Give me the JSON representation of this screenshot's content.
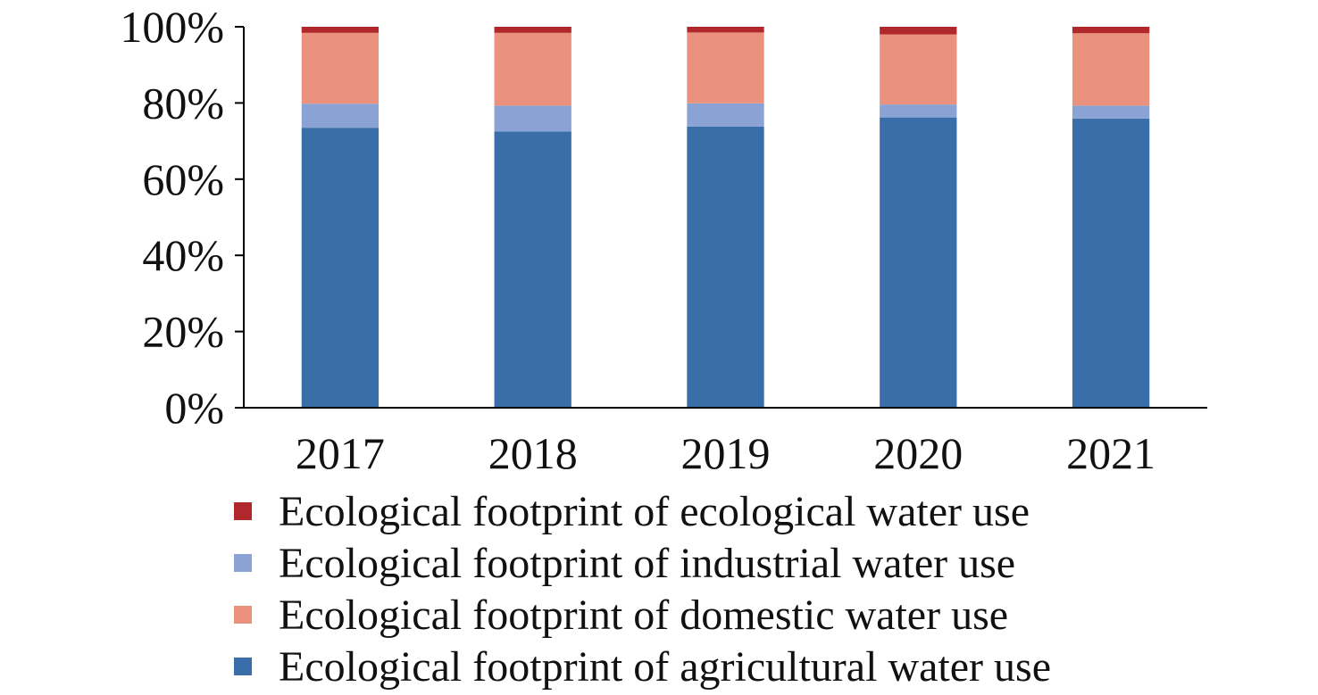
{
  "chart_data": {
    "type": "bar",
    "stacked": true,
    "percent_axis": true,
    "categories": [
      "2017",
      "2018",
      "2019",
      "2020",
      "2021"
    ],
    "series": [
      {
        "name": "Ecological footprint of agricultural water use",
        "color": "#3a6ea8",
        "values": [
          73.5,
          72.5,
          73.8,
          76.2,
          75.9
        ]
      },
      {
        "name": "Ecological footprint of industrial water use",
        "color": "#8aa3d4",
        "values": [
          6.3,
          6.8,
          6.1,
          3.4,
          3.4
        ]
      },
      {
        "name": "Ecological footprint of domestic water use",
        "color": "#ea927d",
        "values": [
          18.6,
          19.1,
          18.6,
          18.4,
          19.0
        ]
      },
      {
        "name": "Ecological footprint of ecological water use",
        "color": "#b0282b",
        "values": [
          1.6,
          1.6,
          1.5,
          2.0,
          1.7
        ]
      }
    ],
    "y_ticks": [
      "0%",
      "20%",
      "40%",
      "60%",
      "80%",
      "100%"
    ],
    "ylim": [
      0,
      100
    ],
    "grid": false,
    "legend_position": "bottom",
    "legend_order": [
      3,
      1,
      2,
      0
    ]
  }
}
